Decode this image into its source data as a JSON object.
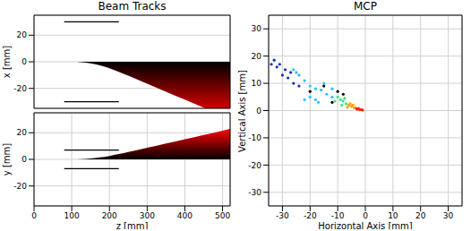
{
  "chart_data": [
    {
      "type": "line",
      "title": "Beam Tracks",
      "y_label": "x [mm]",
      "xlim": [
        0,
        520
      ],
      "ylim": [
        -35,
        35
      ],
      "xticks": [
        0,
        100,
        200,
        300,
        400,
        500
      ],
      "yticks": [
        -20,
        0,
        20
      ],
      "grid": true,
      "tick_labels": "y",
      "series": [
        {
          "type": "area",
          "color": "#ff0000",
          "x": [
            0,
            50,
            100,
            125,
            150,
            175,
            200,
            225,
            250,
            300,
            350,
            400,
            450,
            500,
            520
          ],
          "lower": [
            0,
            0,
            0,
            -0.3,
            -1.2,
            -2.7,
            -4.8,
            -7.5,
            -10.5,
            -16.5,
            -22.5,
            -28.5,
            -34.5,
            -40.5,
            -42.9
          ],
          "upper": [
            0,
            0,
            0,
            0,
            0,
            0,
            0,
            0,
            0,
            0,
            0,
            0,
            0,
            0,
            0
          ]
        },
        {
          "type": "line",
          "color": "#000000",
          "x": [
            80,
            225
          ],
          "values": [
            30,
            30
          ]
        },
        {
          "type": "line",
          "color": "#000000",
          "x": [
            80,
            225
          ],
          "values": [
            -30,
            -30
          ]
        }
      ]
    },
    {
      "type": "line",
      "x_label": "z [mm]",
      "y_label": "y [mm]",
      "xlim": [
        0,
        520
      ],
      "ylim": [
        -35,
        35
      ],
      "xticks": [
        0,
        100,
        200,
        300,
        400,
        500
      ],
      "yticks": [
        -20,
        0,
        20
      ],
      "grid": true,
      "series": [
        {
          "type": "area",
          "color": "#ff0000",
          "x": [
            0,
            50,
            100,
            125,
            150,
            175,
            200,
            225,
            250,
            300,
            350,
            400,
            450,
            500,
            520
          ],
          "lower": [
            0,
            0,
            0,
            0,
            0,
            0,
            0,
            0,
            0,
            0,
            0,
            0,
            0,
            0,
            0
          ],
          "upper": [
            0,
            0,
            0,
            0.16,
            0.64,
            1.44,
            2.56,
            4,
            5.6,
            8.8,
            12,
            15.2,
            18.4,
            21.6,
            22.9
          ]
        },
        {
          "type": "line",
          "color": "#000000",
          "x": [
            80,
            225
          ],
          "values": [
            7,
            7
          ]
        },
        {
          "type": "line",
          "color": "#000000",
          "x": [
            80,
            225
          ],
          "values": [
            -7,
            -7
          ]
        }
      ]
    },
    {
      "type": "scatter",
      "title": "MCP",
      "x_label": "Horizontal Axis [mm]",
      "y_label": "Vertical Axis [mm]",
      "xlim": [
        -35,
        35
      ],
      "ylim": [
        -35,
        35
      ],
      "xticks": [
        -30,
        -20,
        -10,
        0,
        10,
        20,
        30
      ],
      "yticks": [
        -30,
        -20,
        -10,
        0,
        10,
        20,
        30
      ],
      "grid": true,
      "series": [
        {
          "color": "#ff2000",
          "x": [
            -1,
            -2,
            -3,
            -2.5,
            -1.5,
            -3.5
          ],
          "values": [
            0.2,
            0.3,
            0.5,
            0.8,
            0.4,
            0.9
          ]
        },
        {
          "color": "#ffa000",
          "x": [
            -4,
            -5,
            -6,
            -4.5,
            -5.5,
            -6.5
          ],
          "values": [
            1,
            1.5,
            2,
            2,
            2.5,
            1.2
          ]
        },
        {
          "color": "#40e080",
          "x": [
            -7,
            -8,
            -9,
            -10,
            -8.5,
            -11,
            -7.5
          ],
          "values": [
            2.5,
            3.5,
            4,
            5,
            2,
            3.5,
            4.5
          ]
        },
        {
          "color": "#30c0ff",
          "x": [
            -12,
            -14,
            -16,
            -18,
            -12,
            -15,
            -20,
            -22,
            -25,
            -24,
            -26,
            -18,
            -20,
            -22,
            -17
          ],
          "values": [
            5,
            6,
            7.5,
            8,
            8,
            10,
            9,
            11,
            14,
            13,
            15,
            4,
            5,
            4,
            3
          ]
        },
        {
          "color": "#1030c0",
          "x": [
            -27,
            -29,
            -31,
            -33,
            -28,
            -30,
            -32,
            -34,
            -24,
            -26
          ],
          "values": [
            14,
            15,
            17,
            18.5,
            12,
            13,
            16,
            17,
            9,
            10
          ]
        },
        {
          "color": "#000000",
          "x": [
            -10,
            -15,
            -20,
            -8,
            -12
          ],
          "values": [
            7,
            9,
            7,
            6,
            3
          ]
        }
      ]
    }
  ]
}
